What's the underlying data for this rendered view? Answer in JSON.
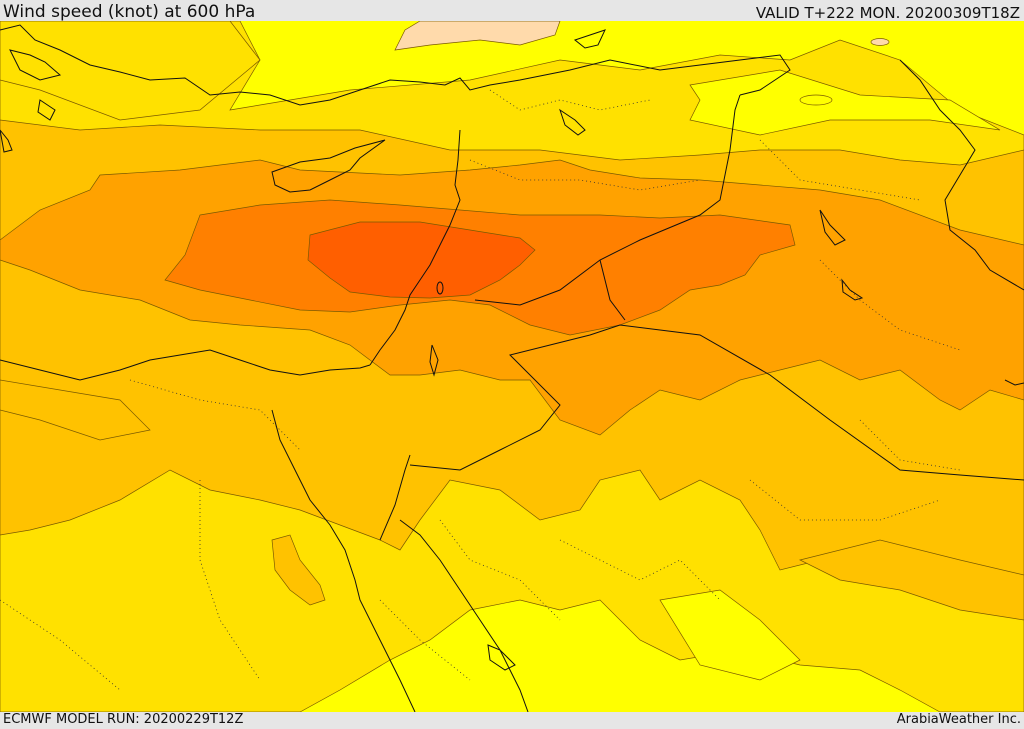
{
  "header": {
    "title": "Wind speed (knot) at 600 hPa",
    "valid": "VALID T+222 MON. 20200309T18Z"
  },
  "footer": {
    "model_run": "ECMWF MODEL RUN: 20200229T12Z",
    "credit": "ArabiaWeather Inc."
  },
  "map": {
    "field": "wind speed at 600 hPa",
    "fill_colors": [
      "#ffff00",
      "#ffe100",
      "#ffc200",
      "#ffa200",
      "#ff8000",
      "#ff5f00",
      "#ffdaab"
    ]
  }
}
